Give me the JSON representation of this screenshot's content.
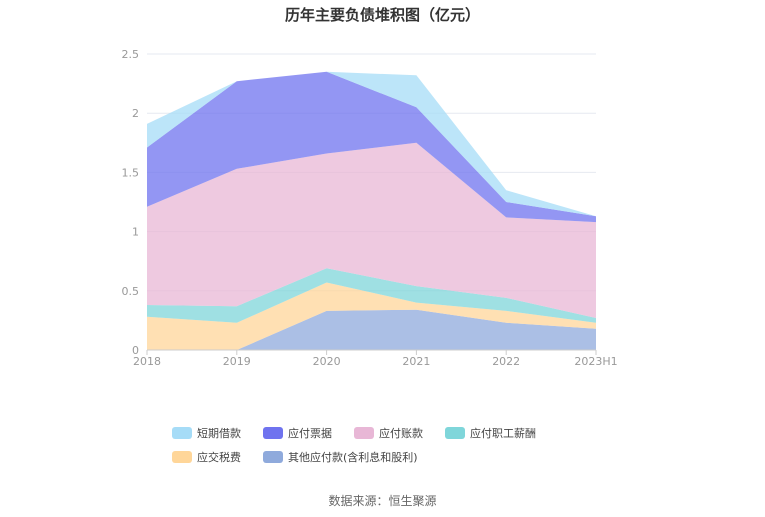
{
  "chart_data": {
    "type": "area",
    "stacked": true,
    "title": "历年主要负债堆积图（亿元）",
    "categories": [
      "2018",
      "2019",
      "2020",
      "2021",
      "2022",
      "2023H1"
    ],
    "y_ticks": [
      "0",
      "0.5",
      "1",
      "1.5",
      "2",
      "2.5"
    ],
    "ylim": [
      0,
      2.5
    ],
    "grid": true,
    "legend_position": "bottom",
    "series": [
      {
        "name": "其他应付款(含利息和股利)",
        "color": "#8faadc",
        "values": [
          0.0,
          0.0,
          0.33,
          0.34,
          0.23,
          0.18
        ]
      },
      {
        "name": "应交税费",
        "color": "#ffd699",
        "values": [
          0.28,
          0.23,
          0.24,
          0.06,
          0.1,
          0.05
        ]
      },
      {
        "name": "应付职工薪酬",
        "color": "#7fd6da",
        "values": [
          0.1,
          0.14,
          0.12,
          0.14,
          0.11,
          0.04
        ]
      },
      {
        "name": "应付账款",
        "color": "#e8b7d6",
        "values": [
          0.83,
          1.16,
          0.97,
          1.21,
          0.68,
          0.81
        ]
      },
      {
        "name": "应付票据",
        "color": "#6f73ef",
        "values": [
          0.5,
          0.74,
          0.69,
          0.3,
          0.13,
          0.05
        ]
      },
      {
        "name": "短期借款",
        "color": "#a6dcf7",
        "values": [
          0.2,
          0.0,
          0.0,
          0.27,
          0.1,
          0.0
        ]
      }
    ],
    "legend_order": [
      "短期借款",
      "应付票据",
      "应付账款",
      "应付职工薪酬",
      "应交税费",
      "其他应付款(含利息和股利)"
    ]
  },
  "source_text": "数据来源：恒生聚源"
}
